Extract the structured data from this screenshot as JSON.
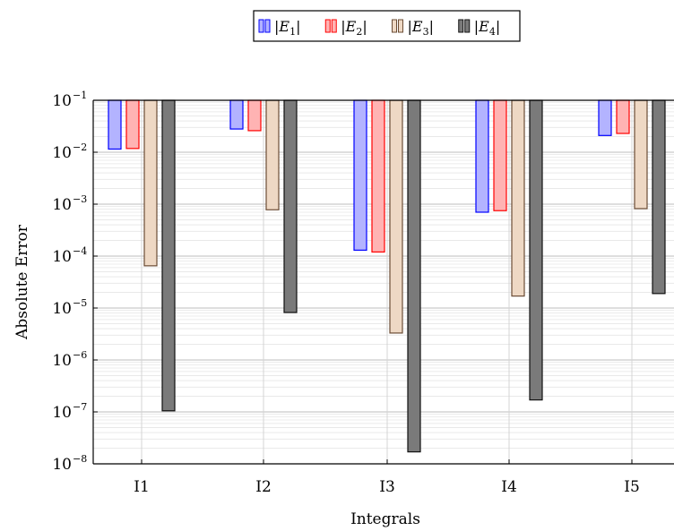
{
  "chart_data": {
    "type": "bar",
    "title": "",
    "xlabel": "Integrals",
    "ylabel": "Absolute Error",
    "yscale": "log",
    "ylim": [
      1e-08,
      0.1
    ],
    "grid": true,
    "legend_position": "top-center",
    "categories": [
      "I1",
      "I2",
      "I3",
      "I4",
      "I5"
    ],
    "y_tick_labels": [
      {
        "base": "10",
        "exp": "−8"
      },
      {
        "base": "10",
        "exp": "−7"
      },
      {
        "base": "10",
        "exp": "−6"
      },
      {
        "base": "10",
        "exp": "−5"
      },
      {
        "base": "10",
        "exp": "−4"
      },
      {
        "base": "10",
        "exp": "−3"
      },
      {
        "base": "10",
        "exp": "−2"
      },
      {
        "base": "10",
        "exp": "−1"
      }
    ],
    "series": [
      {
        "name": "|E1|",
        "label_main": "E",
        "label_sub": "1",
        "fill": "#b3b3ff",
        "stroke": "#0000ff",
        "values": [
          0.0115,
          0.028,
          0.00013,
          0.0007,
          0.021
        ]
      },
      {
        "name": "|E2|",
        "label_main": "E",
        "label_sub": "2",
        "fill": "#ffb3b3",
        "stroke": "#ff0000",
        "values": [
          0.0118,
          0.026,
          0.00012,
          0.00075,
          0.023
        ]
      },
      {
        "name": "|E3|",
        "label_main": "E",
        "label_sub": "3",
        "fill": "#eed8c4",
        "stroke": "#6b4c35",
        "values": [
          6.5e-05,
          0.00078,
          3.3e-06,
          1.7e-05,
          0.00082
        ]
      },
      {
        "name": "|E4|",
        "label_main": "E",
        "label_sub": "4",
        "fill": "#7a7a7a",
        "stroke": "#111111",
        "values": [
          1.05e-07,
          8.2e-06,
          1.7e-08,
          1.7e-07,
          1.9e-05
        ]
      }
    ]
  }
}
